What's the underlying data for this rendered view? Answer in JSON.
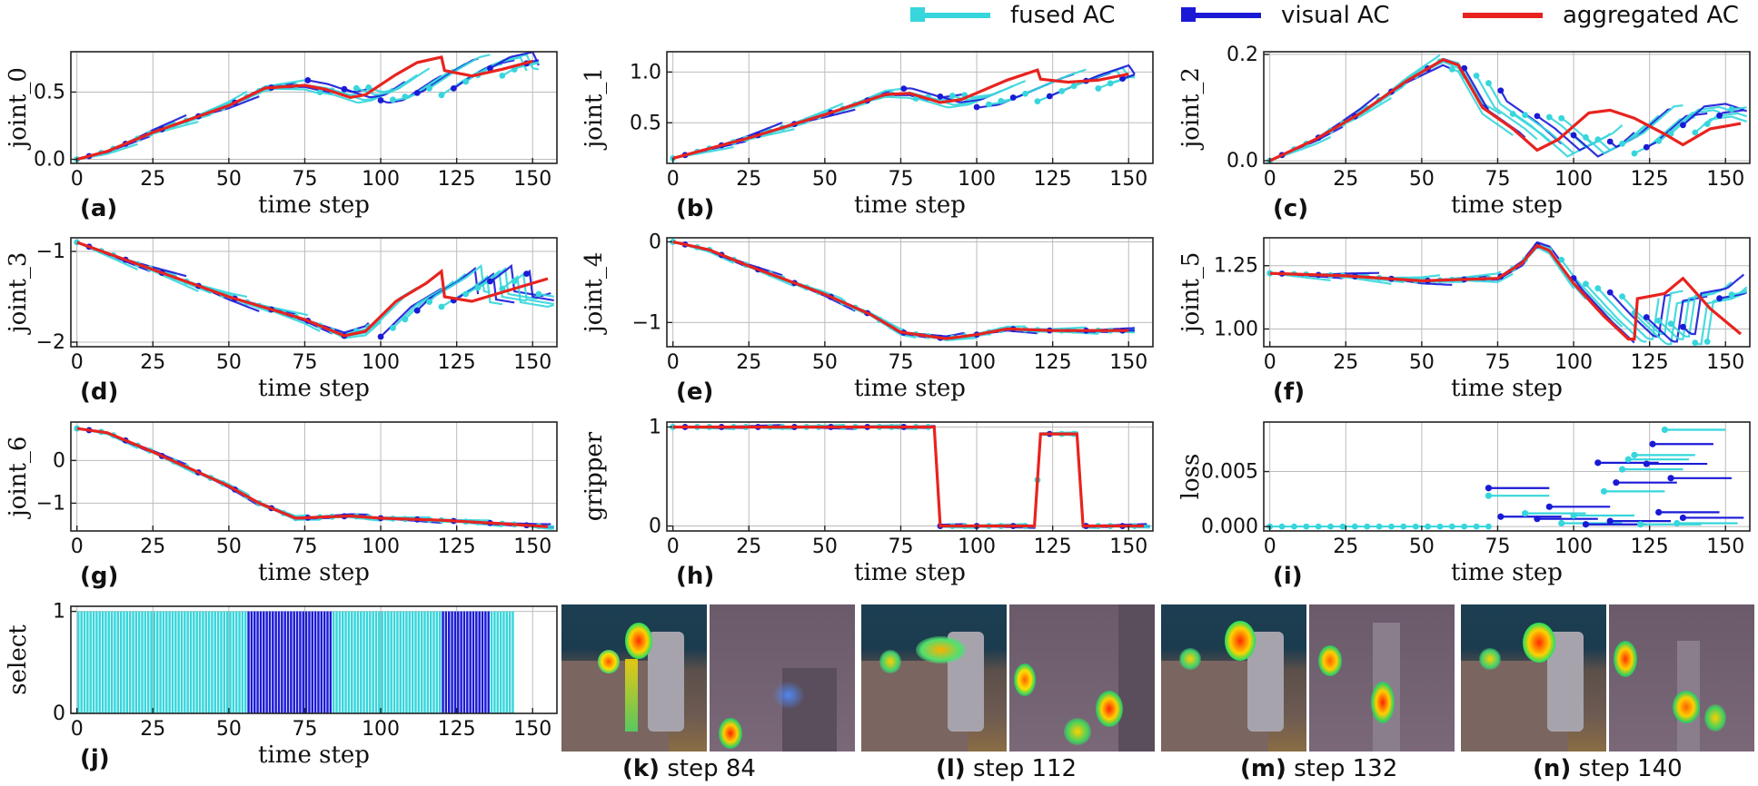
{
  "legend": {
    "items": [
      {
        "label": "fused AC",
        "color": "#36d6dc"
      },
      {
        "label": "visual AC",
        "color": "#1a1ad6"
      },
      {
        "label": "aggregated AC",
        "color": "#e8231f"
      }
    ]
  },
  "colors": {
    "fused": "#36d6dc",
    "visual": "#1a1ad6",
    "aggregated": "#e8231f",
    "grid": "#bbbbbb"
  },
  "chart_data": [
    {
      "id": "a",
      "panel_label": "(a)",
      "type": "line",
      "ylabel": "joint_0",
      "xlabel": "time step",
      "xlim": [
        -2,
        158
      ],
      "ylim": [
        -0.03,
        0.8
      ],
      "xticks": [
        0,
        25,
        50,
        75,
        100,
        125,
        150
      ],
      "xtick_labels": [
        "0",
        "25",
        "50",
        "75",
        "100",
        "125",
        "150"
      ],
      "yticks": [
        0,
        0.5
      ],
      "ytick_labels": [
        "0.0",
        "0.5"
      ],
      "aggregated": [
        [
          0,
          0
        ],
        [
          10,
          0.06
        ],
        [
          25,
          0.2
        ],
        [
          50,
          0.4
        ],
        [
          62,
          0.53
        ],
        [
          75,
          0.55
        ],
        [
          82,
          0.52
        ],
        [
          90,
          0.46
        ],
        [
          95,
          0.48
        ],
        [
          105,
          0.63
        ],
        [
          112,
          0.72
        ],
        [
          120,
          0.76
        ],
        [
          121,
          0.66
        ],
        [
          130,
          0.62
        ],
        [
          140,
          0.67
        ],
        [
          150,
          0.73
        ]
      ],
      "ac_window": 20,
      "ac_spread": 0.04,
      "branch_start": 75,
      "branch_amp": 0.13
    },
    {
      "id": "b",
      "panel_label": "(b)",
      "type": "line",
      "ylabel": "joint_1",
      "xlabel": "time step",
      "xlim": [
        -2,
        158
      ],
      "ylim": [
        0.1,
        1.2
      ],
      "xticks": [
        0,
        25,
        50,
        75,
        100,
        125,
        150
      ],
      "xtick_labels": [
        "0",
        "25",
        "50",
        "75",
        "100",
        "125",
        "150"
      ],
      "yticks": [
        0.5,
        1.0
      ],
      "ytick_labels": [
        "0.5",
        "1.0"
      ],
      "aggregated": [
        [
          0,
          0.15
        ],
        [
          25,
          0.35
        ],
        [
          50,
          0.58
        ],
        [
          70,
          0.78
        ],
        [
          78,
          0.79
        ],
        [
          88,
          0.7
        ],
        [
          95,
          0.73
        ],
        [
          110,
          0.92
        ],
        [
          120,
          1.02
        ],
        [
          121,
          0.93
        ],
        [
          130,
          0.9
        ],
        [
          140,
          0.92
        ],
        [
          150,
          0.98
        ]
      ],
      "ac_window": 20,
      "ac_spread": 0.05,
      "branch_start": 75,
      "branch_amp": 0.18
    },
    {
      "id": "c",
      "panel_label": "(c)",
      "type": "line",
      "ylabel": "joint_2",
      "xlabel": "time step",
      "xlim": [
        -2,
        158
      ],
      "ylim": [
        -0.005,
        0.205
      ],
      "xticks": [
        0,
        25,
        50,
        75,
        100,
        125,
        150
      ],
      "xtick_labels": [
        "0",
        "25",
        "50",
        "75",
        "100",
        "125",
        "150"
      ],
      "yticks": [
        0,
        0.2
      ],
      "ytick_labels": [
        "0.0",
        "0.2"
      ],
      "aggregated": [
        [
          0,
          0
        ],
        [
          15,
          0.04
        ],
        [
          30,
          0.09
        ],
        [
          45,
          0.15
        ],
        [
          57,
          0.19
        ],
        [
          62,
          0.18
        ],
        [
          70,
          0.1
        ],
        [
          80,
          0.06
        ],
        [
          88,
          0.02
        ],
        [
          95,
          0.04
        ],
        [
          105,
          0.09
        ],
        [
          112,
          0.095
        ],
        [
          120,
          0.08
        ],
        [
          130,
          0.05
        ],
        [
          136,
          0.03
        ],
        [
          145,
          0.06
        ],
        [
          155,
          0.07
        ]
      ],
      "ac_window": 20,
      "ac_spread": 0.012,
      "branch_start": 60,
      "branch_amp": 0.03
    },
    {
      "id": "d",
      "panel_label": "(d)",
      "type": "line",
      "ylabel": "joint_3",
      "xlabel": "time step",
      "xlim": [
        -2,
        158
      ],
      "ylim": [
        -2.05,
        -0.85
      ],
      "xticks": [
        0,
        25,
        50,
        75,
        100,
        125,
        150
      ],
      "xtick_labels": [
        "0",
        "25",
        "50",
        "75",
        "100",
        "125",
        "150"
      ],
      "yticks": [
        -1,
        -2
      ],
      "ytick_labels": [
        "−1",
        "−2"
      ],
      "aggregated": [
        [
          0,
          -0.9
        ],
        [
          25,
          -1.2
        ],
        [
          50,
          -1.5
        ],
        [
          75,
          -1.75
        ],
        [
          88,
          -1.93
        ],
        [
          95,
          -1.88
        ],
        [
          105,
          -1.55
        ],
        [
          115,
          -1.35
        ],
        [
          120,
          -1.22
        ],
        [
          121,
          -1.5
        ],
        [
          130,
          -1.55
        ],
        [
          140,
          -1.45
        ],
        [
          155,
          -1.3
        ]
      ],
      "ac_window": 20,
      "ac_spread": 0.06,
      "branch_start": 90,
      "branch_amp": 0.22
    },
    {
      "id": "e",
      "panel_label": "(e)",
      "type": "line",
      "ylabel": "joint_4",
      "xlabel": "time step",
      "xlim": [
        -2,
        158
      ],
      "ylim": [
        -1.3,
        0.05
      ],
      "xticks": [
        0,
        25,
        50,
        75,
        100,
        125,
        150
      ],
      "xtick_labels": [
        "0",
        "25",
        "50",
        "75",
        "100",
        "125",
        "150"
      ],
      "yticks": [
        0,
        -1
      ],
      "ytick_labels": [
        "0",
        "−1"
      ],
      "aggregated": [
        [
          0,
          0
        ],
        [
          12,
          -0.1
        ],
        [
          25,
          -0.3
        ],
        [
          50,
          -0.65
        ],
        [
          65,
          -0.9
        ],
        [
          75,
          -1.12
        ],
        [
          90,
          -1.2
        ],
        [
          100,
          -1.15
        ],
        [
          110,
          -1.08
        ],
        [
          125,
          -1.1
        ],
        [
          150,
          -1.1
        ]
      ],
      "ac_window": 20,
      "ac_spread": 0.04,
      "branch_start": 200,
      "branch_amp": 0
    },
    {
      "id": "f",
      "panel_label": "(f)",
      "type": "line",
      "ylabel": "joint_5",
      "xlabel": "time step",
      "xlim": [
        -2,
        158
      ],
      "ylim": [
        0.93,
        1.36
      ],
      "xticks": [
        0,
        25,
        50,
        75,
        100,
        125,
        150
      ],
      "xtick_labels": [
        "0",
        "25",
        "50",
        "75",
        "100",
        "125",
        "150"
      ],
      "yticks": [
        1.0,
        1.25
      ],
      "ytick_labels": [
        "1.00",
        "1.25"
      ],
      "aggregated": [
        [
          0,
          1.22
        ],
        [
          25,
          1.21
        ],
        [
          50,
          1.19
        ],
        [
          75,
          1.2
        ],
        [
          83,
          1.26
        ],
        [
          88,
          1.33
        ],
        [
          92,
          1.31
        ],
        [
          100,
          1.18
        ],
        [
          110,
          1.05
        ],
        [
          118,
          0.96
        ],
        [
          120,
          0.96
        ],
        [
          121,
          1.12
        ],
        [
          130,
          1.14
        ],
        [
          136,
          1.2
        ],
        [
          145,
          1.08
        ],
        [
          155,
          0.98
        ]
      ],
      "ac_window": 20,
      "ac_spread": 0.02,
      "branch_start": 95,
      "branch_amp": 0.12
    },
    {
      "id": "g",
      "panel_label": "(g)",
      "type": "line",
      "ylabel": "joint_6",
      "xlabel": "time step",
      "xlim": [
        -2,
        158
      ],
      "ylim": [
        -1.65,
        0.9
      ],
      "xticks": [
        0,
        25,
        50,
        75,
        100,
        125,
        150
      ],
      "xtick_labels": [
        "0",
        "25",
        "50",
        "75",
        "100",
        "125",
        "150"
      ],
      "yticks": [
        0,
        -1
      ],
      "ytick_labels": [
        "0",
        "−1"
      ],
      "aggregated": [
        [
          0,
          0.75
        ],
        [
          10,
          0.65
        ],
        [
          25,
          0.2
        ],
        [
          50,
          -0.6
        ],
        [
          60,
          -1.0
        ],
        [
          72,
          -1.35
        ],
        [
          90,
          -1.3
        ],
        [
          100,
          -1.35
        ],
        [
          120,
          -1.4
        ],
        [
          140,
          -1.48
        ],
        [
          155,
          -1.55
        ]
      ],
      "ac_window": 20,
      "ac_spread": 0.06,
      "branch_start": 200,
      "branch_amp": 0
    },
    {
      "id": "h",
      "panel_label": "(h)",
      "type": "line",
      "ylabel": "gripper",
      "xlabel": "time step",
      "xlim": [
        -2,
        158
      ],
      "ylim": [
        -0.05,
        1.05
      ],
      "xticks": [
        0,
        25,
        50,
        75,
        100,
        125,
        150
      ],
      "xtick_labels": [
        "0",
        "25",
        "50",
        "75",
        "100",
        "125",
        "150"
      ],
      "yticks": [
        0,
        1
      ],
      "ytick_labels": [
        "0",
        "1"
      ],
      "aggregated": [
        [
          0,
          1
        ],
        [
          86,
          1
        ],
        [
          88,
          0
        ],
        [
          119,
          0
        ],
        [
          121,
          0.93
        ],
        [
          133,
          0.93
        ],
        [
          135,
          0
        ],
        [
          155,
          0
        ]
      ],
      "ac_window": 20,
      "ac_spread": 0.02,
      "branch_start": 200,
      "branch_amp": 0
    },
    {
      "id": "i",
      "panel_label": "(i)",
      "type": "scatter",
      "ylabel": "loss",
      "xlabel": "time step",
      "xlim": [
        -2,
        158
      ],
      "ylim": [
        -0.0004,
        0.0095
      ],
      "xticks": [
        0,
        25,
        50,
        75,
        100,
        125,
        150
      ],
      "xtick_labels": [
        "0",
        "25",
        "50",
        "75",
        "100",
        "125",
        "150"
      ],
      "yticks": [
        0,
        0.005
      ],
      "ytick_labels": [
        "0.000",
        "0.005"
      ],
      "baseline_until": 72,
      "segments": [
        {
          "s": 72,
          "v": 0.0035,
          "k": "visual"
        },
        {
          "s": 72,
          "v": 0.0028,
          "k": "fused"
        },
        {
          "s": 76,
          "v": 0.0009,
          "k": "visual"
        },
        {
          "s": 84,
          "v": 0.0012,
          "k": "fused"
        },
        {
          "s": 88,
          "v": 0.0007,
          "k": "visual"
        },
        {
          "s": 92,
          "v": 0.0018,
          "k": "visual"
        },
        {
          "s": 96,
          "v": 0.0003,
          "k": "fused"
        },
        {
          "s": 100,
          "v": 0.001,
          "k": "fused"
        },
        {
          "s": 104,
          "v": 0.0002,
          "k": "visual"
        },
        {
          "s": 108,
          "v": 0.0058,
          "k": "visual"
        },
        {
          "s": 110,
          "v": 0.0032,
          "k": "fused"
        },
        {
          "s": 112,
          "v": 0.0005,
          "k": "visual"
        },
        {
          "s": 114,
          "v": 0.004,
          "k": "visual"
        },
        {
          "s": 116,
          "v": 0.0052,
          "k": "fused"
        },
        {
          "s": 118,
          "v": 0.0061,
          "k": "fused"
        },
        {
          "s": 120,
          "v": 0.0065,
          "k": "fused"
        },
        {
          "s": 122,
          "v": 0.0002,
          "k": "fused"
        },
        {
          "s": 124,
          "v": 0.0057,
          "k": "visual"
        },
        {
          "s": 126,
          "v": 0.0075,
          "k": "visual"
        },
        {
          "s": 128,
          "v": 0.0013,
          "k": "visual"
        },
        {
          "s": 130,
          "v": 0.0088,
          "k": "fused"
        },
        {
          "s": 132,
          "v": 0.0044,
          "k": "visual"
        },
        {
          "s": 134,
          "v": 0.0003,
          "k": "fused"
        },
        {
          "s": 136,
          "v": 0.0008,
          "k": "visual"
        }
      ]
    },
    {
      "id": "j",
      "panel_label": "(j)",
      "type": "bar",
      "ylabel": "select",
      "xlabel": "time step",
      "xlim": [
        -2,
        158
      ],
      "ylim": [
        0,
        1.05
      ],
      "xticks": [
        0,
        25,
        50,
        75,
        100,
        125,
        150
      ],
      "xtick_labels": [
        "0",
        "25",
        "50",
        "75",
        "100",
        "125",
        "150"
      ],
      "yticks": [
        0,
        1
      ],
      "ytick_labels": [
        "0",
        "1"
      ],
      "blocks": [
        {
          "from": 0,
          "to": 56,
          "source": "fused"
        },
        {
          "from": 56,
          "to": 84,
          "source": "visual"
        },
        {
          "from": 84,
          "to": 120,
          "source": "fused"
        },
        {
          "from": 120,
          "to": 136,
          "source": "visual"
        },
        {
          "from": 136,
          "to": 144,
          "source": "fused"
        }
      ]
    }
  ],
  "heatmaps": [
    {
      "caption_bold": "(k)",
      "caption_text": " step 84"
    },
    {
      "caption_bold": "(l)",
      "caption_text": " step 112"
    },
    {
      "caption_bold": "(m)",
      "caption_text": " step 132"
    },
    {
      "caption_bold": "(n)",
      "caption_text": " step 140"
    }
  ]
}
